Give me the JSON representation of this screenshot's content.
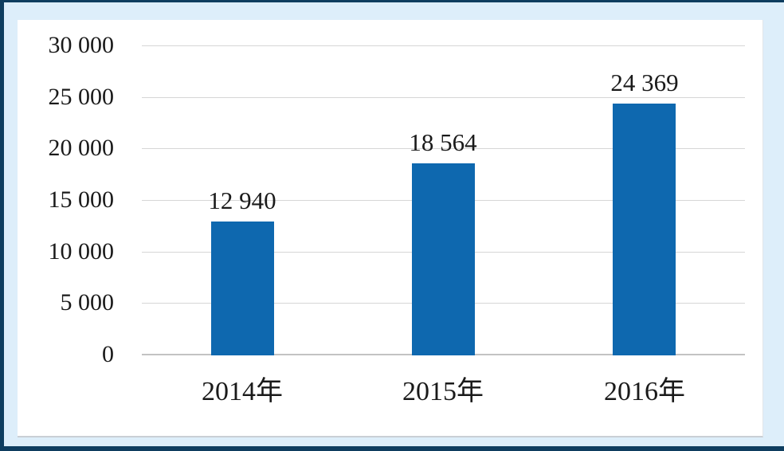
{
  "frame": {
    "border_color": "#0e3d5f",
    "page_background": "#ddeefa",
    "panel_background": "#ffffff"
  },
  "chart_data": {
    "type": "bar",
    "title": "",
    "xlabel": "",
    "ylabel": "",
    "categories": [
      "2014年",
      "2015年",
      "2016年"
    ],
    "values": [
      12940,
      18564,
      24369
    ],
    "value_labels": [
      "12 940",
      "18 564",
      "24 369"
    ],
    "ylim": [
      0,
      30000
    ],
    "y_ticks": [
      0,
      5000,
      10000,
      15000,
      20000,
      25000,
      30000
    ],
    "y_tick_labels": [
      "0",
      "5 000",
      "10 000",
      "15 000",
      "20 000",
      "25 000",
      "30 000"
    ],
    "grid": true,
    "legend": false,
    "legend_position": "none",
    "bar_color": "#0e68af",
    "gridline_color": "#d6d6d6",
    "axis_line_color": "#c3c3c3",
    "text_color": "#1a1a1a"
  }
}
